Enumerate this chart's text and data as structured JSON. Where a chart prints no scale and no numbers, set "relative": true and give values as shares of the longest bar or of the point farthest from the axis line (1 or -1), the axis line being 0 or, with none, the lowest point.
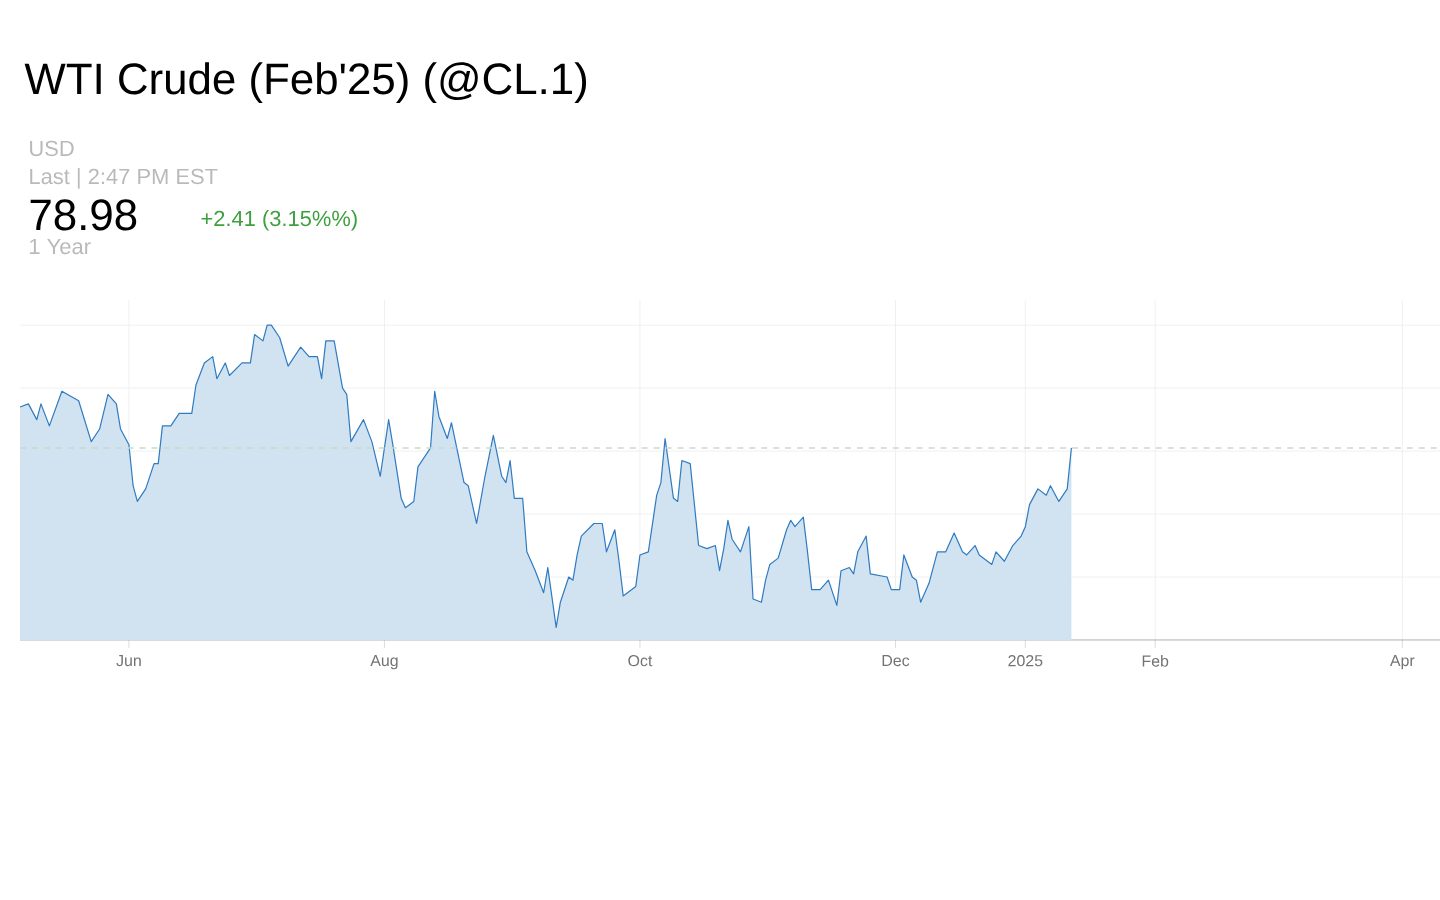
{
  "chart_data": {
    "type": "area",
    "title": "WTI Crude (Feb'25) (@CL.1)",
    "relative": true,
    "grid": true,
    "annotations": [
      "USD",
      "Last | 2:47 PM EST",
      "78.98",
      "+2.41 (3.15%%)",
      "1 Year"
    ],
    "xlim": [
      "2024-05-06",
      "2025-04-10"
    ],
    "xticks": [
      {
        "value": "2024-06-01",
        "label": "Jun"
      },
      {
        "value": "2024-08-01",
        "label": "Aug"
      },
      {
        "value": "2024-10-01",
        "label": "Oct"
      },
      {
        "value": "2024-12-01",
        "label": "Dec"
      },
      {
        "value": "2025-01-01",
        "label": "2025"
      },
      {
        "value": "2025-02-01",
        "label": "Feb"
      },
      {
        "value": "2025-04-01",
        "label": "Apr"
      }
    ],
    "ref_lines": [
      {
        "axis": "y",
        "value": 0.61,
        "color": "#c8dcc8",
        "line_style": "dashed"
      }
    ],
    "series": [
      {
        "color": "#2f7bc0",
        "x": [
          "2024-05-06",
          "2024-05-08",
          "2024-05-10",
          "2024-05-11",
          "2024-05-13",
          "2024-05-16",
          "2024-05-20",
          "2024-05-23",
          "2024-05-25",
          "2024-05-27",
          "2024-05-29",
          "2024-05-30",
          "2024-06-01",
          "2024-06-02",
          "2024-06-03",
          "2024-06-05",
          "2024-06-07",
          "2024-06-08",
          "2024-06-09",
          "2024-06-11",
          "2024-06-13",
          "2024-06-16",
          "2024-06-17",
          "2024-06-19",
          "2024-06-21",
          "2024-06-22",
          "2024-06-24",
          "2024-06-25",
          "2024-06-28",
          "2024-06-30",
          "2024-07-01",
          "2024-07-03",
          "2024-07-04",
          "2024-07-05",
          "2024-07-07",
          "2024-07-09",
          "2024-07-12",
          "2024-07-14",
          "2024-07-16",
          "2024-07-17",
          "2024-07-18",
          "2024-07-20",
          "2024-07-22",
          "2024-07-23",
          "2024-07-24",
          "2024-07-27",
          "2024-07-29",
          "2024-07-31",
          "2024-08-02",
          "2024-08-03",
          "2024-08-05",
          "2024-08-06",
          "2024-08-08",
          "2024-08-09",
          "2024-08-12",
          "2024-08-13",
          "2024-08-14",
          "2024-08-16",
          "2024-08-17",
          "2024-08-20",
          "2024-08-21",
          "2024-08-23",
          "2024-08-25",
          "2024-08-27",
          "2024-08-29",
          "2024-08-30",
          "2024-08-31",
          "2024-09-01",
          "2024-09-03",
          "2024-09-04",
          "2024-09-06",
          "2024-09-08",
          "2024-09-09",
          "2024-09-11",
          "2024-09-12",
          "2024-09-14",
          "2024-09-15",
          "2024-09-16",
          "2024-09-17",
          "2024-09-20",
          "2024-09-22",
          "2024-09-23",
          "2024-09-25",
          "2024-09-26",
          "2024-09-27",
          "2024-09-30",
          "2024-10-01",
          "2024-10-03",
          "2024-10-05",
          "2024-10-06",
          "2024-10-07",
          "2024-10-09",
          "2024-10-10",
          "2024-10-11",
          "2024-10-13",
          "2024-10-15",
          "2024-10-17",
          "2024-10-19",
          "2024-10-20",
          "2024-10-21",
          "2024-10-22",
          "2024-10-23",
          "2024-10-25",
          "2024-10-27",
          "2024-10-28",
          "2024-10-30",
          "2024-10-31",
          "2024-11-01",
          "2024-11-03",
          "2024-11-05",
          "2024-11-06",
          "2024-11-07",
          "2024-11-09",
          "2024-11-10",
          "2024-11-11",
          "2024-11-13",
          "2024-11-15",
          "2024-11-17",
          "2024-11-18",
          "2024-11-20",
          "2024-11-21",
          "2024-11-22",
          "2024-11-24",
          "2024-11-25",
          "2024-11-29",
          "2024-11-30",
          "2024-12-02",
          "2024-12-03",
          "2024-12-05",
          "2024-12-06",
          "2024-12-07",
          "2024-12-09",
          "2024-12-11",
          "2024-12-13",
          "2024-12-15",
          "2024-12-17",
          "2024-12-18",
          "2024-12-20",
          "2024-12-21",
          "2024-12-24",
          "2024-12-25",
          "2024-12-27",
          "2024-12-29",
          "2024-12-31",
          "2025-01-01",
          "2025-01-02",
          "2025-01-04",
          "2025-01-06",
          "2025-01-07",
          "2025-01-09",
          "2025-01-11",
          "2025-01-12"
        ],
        "values": [
          0.74,
          0.75,
          0.7,
          0.75,
          0.68,
          0.79,
          0.76,
          0.63,
          0.67,
          0.78,
          0.75,
          0.67,
          0.62,
          0.49,
          0.44,
          0.48,
          0.56,
          0.56,
          0.68,
          0.68,
          0.72,
          0.72,
          0.81,
          0.88,
          0.9,
          0.83,
          0.88,
          0.84,
          0.88,
          0.88,
          0.97,
          0.95,
          1.0,
          1.0,
          0.96,
          0.87,
          0.93,
          0.9,
          0.9,
          0.83,
          0.95,
          0.95,
          0.8,
          0.78,
          0.63,
          0.7,
          0.63,
          0.52,
          0.7,
          0.62,
          0.45,
          0.42,
          0.44,
          0.55,
          0.61,
          0.79,
          0.71,
          0.64,
          0.69,
          0.5,
          0.49,
          0.37,
          0.52,
          0.65,
          0.52,
          0.5,
          0.57,
          0.45,
          0.45,
          0.28,
          0.22,
          0.15,
          0.23,
          0.04,
          0.12,
          0.2,
          0.19,
          0.27,
          0.33,
          0.37,
          0.37,
          0.28,
          0.35,
          0.25,
          0.14,
          0.17,
          0.27,
          0.28,
          0.46,
          0.5,
          0.64,
          0.45,
          0.44,
          0.57,
          0.56,
          0.3,
          0.29,
          0.3,
          0.22,
          0.29,
          0.38,
          0.32,
          0.28,
          0.36,
          0.13,
          0.12,
          0.19,
          0.24,
          0.26,
          0.35,
          0.38,
          0.36,
          0.39,
          0.28,
          0.16,
          0.16,
          0.19,
          0.11,
          0.22,
          0.23,
          0.21,
          0.28,
          0.33,
          0.21,
          0.2,
          0.16,
          0.16,
          0.27,
          0.2,
          0.19,
          0.12,
          0.18,
          0.28,
          0.28,
          0.34,
          0.28,
          0.27,
          0.3,
          0.27,
          0.24,
          0.28,
          0.25,
          0.3,
          0.33,
          0.36,
          0.43,
          0.48,
          0.46,
          0.49,
          0.44,
          0.48,
          0.61
        ]
      }
    ]
  }
}
